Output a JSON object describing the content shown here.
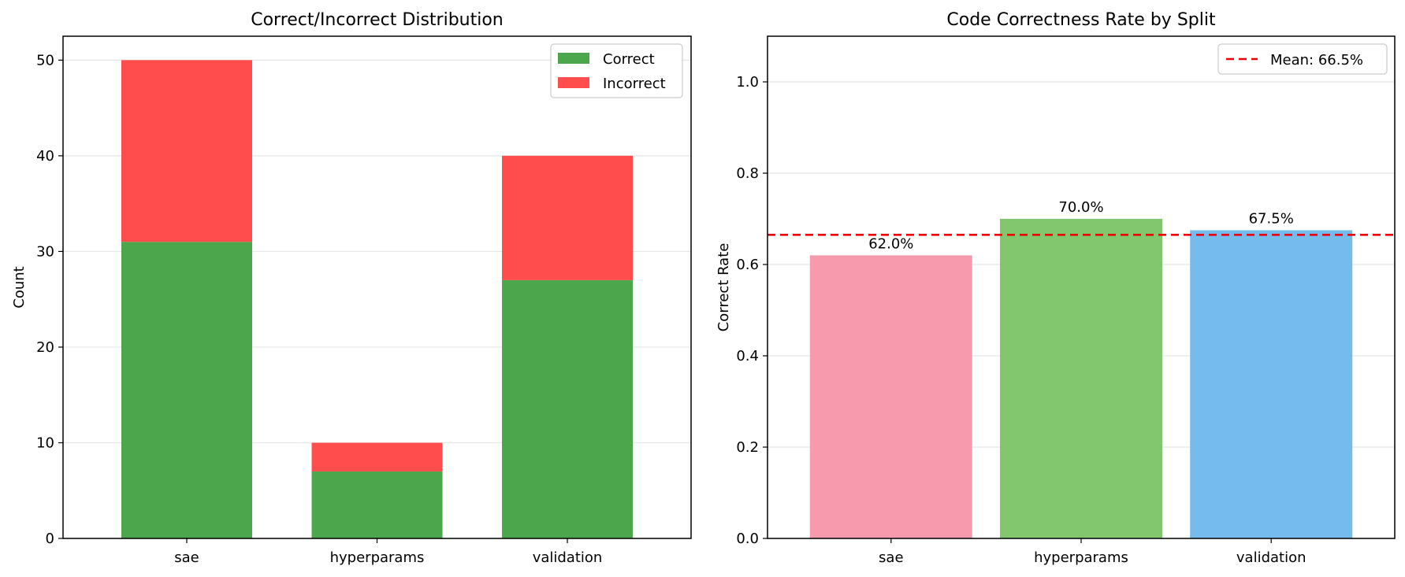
{
  "chart_data": [
    {
      "type": "bar",
      "stacked": true,
      "title": "Correct/Incorrect Distribution",
      "xlabel": "",
      "ylabel": "Count",
      "categories": [
        "sae",
        "hyperparams",
        "validation"
      ],
      "series": [
        {
          "name": "Correct",
          "values": [
            31,
            7,
            27
          ],
          "color": "#4ca64c"
        },
        {
          "name": "Incorrect",
          "values": [
            19,
            3,
            13
          ],
          "color": "#ff4c4c"
        }
      ],
      "ylim": [
        0,
        52.5
      ],
      "yticks": [
        0,
        10,
        20,
        30,
        40,
        50
      ],
      "grid": "y",
      "legend": "top-right"
    },
    {
      "type": "bar",
      "title": "Code Correctness Rate by Split",
      "xlabel": "",
      "ylabel": "Correct Rate",
      "categories": [
        "sae",
        "hyperparams",
        "validation"
      ],
      "values": [
        0.62,
        0.7,
        0.675
      ],
      "data_labels": [
        "62.0%",
        "70.0%",
        "67.5%"
      ],
      "colors": [
        "#f89aad",
        "#82c76e",
        "#76bbee"
      ],
      "ylim": [
        0,
        1.1
      ],
      "yticks": [
        "0.0",
        "0.2",
        "0.4",
        "0.6",
        "0.8",
        "1.0"
      ],
      "reference_line": {
        "value": 0.665,
        "label": "Mean: 66.5%",
        "color": "#ee0000",
        "style": "dashed"
      },
      "grid": "y",
      "legend": "top-right"
    }
  ]
}
